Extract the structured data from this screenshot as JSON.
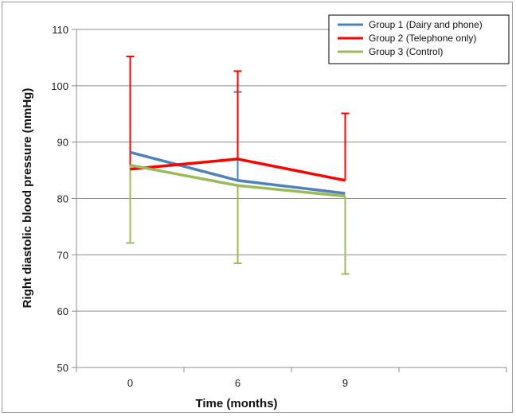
{
  "chart_data": {
    "type": "line",
    "title": "",
    "xlabel": "Time (months)",
    "ylabel": "Right diastolic blood pressure (mmHg)",
    "categories": [
      "0",
      "6",
      "9"
    ],
    "ylim": [
      50,
      110
    ],
    "yticks": [
      50,
      60,
      70,
      80,
      90,
      100,
      110
    ],
    "grid": true,
    "legend_position": "top-right",
    "series": [
      {
        "name": "Group 1 (Dairy and phone)",
        "color": "#4f81bd",
        "values": [
          88.2,
          83.2,
          80.9
        ],
        "error_upper": [
          null,
          98.9,
          null
        ],
        "error_lower": [
          null,
          null,
          null
        ]
      },
      {
        "name": "Group 2 (Telephone only)",
        "color": "#ff0000",
        "values": [
          85.2,
          87.0,
          83.2
        ],
        "error_upper": [
          105.2,
          102.6,
          95.1
        ],
        "error_lower": [
          null,
          null,
          null
        ]
      },
      {
        "name": "Group 3 (Control)",
        "color": "#9bbb59",
        "values": [
          85.9,
          82.3,
          80.4
        ],
        "error_upper": [
          null,
          null,
          null
        ],
        "error_lower": [
          72.1,
          68.5,
          66.6
        ]
      }
    ]
  }
}
